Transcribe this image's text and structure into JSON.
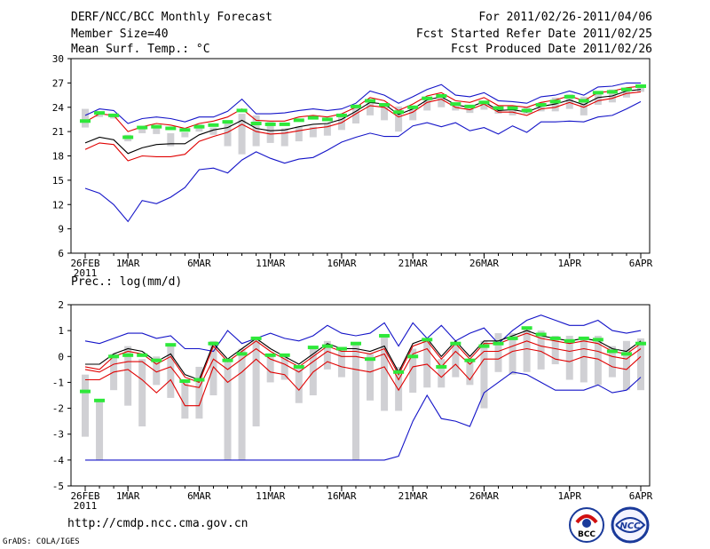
{
  "header": {
    "title": "DERF/NCC/BCC Monthly Forecast",
    "member_size": "Member Size=40",
    "variable1": "Mean Surf. Temp.: °C",
    "period": "For 2011/02/26-2011/04/06",
    "start_date": "Fcst Started Refer Date 2011/02/25",
    "produced": "Fcst Produced Date 2011/02/26"
  },
  "footer": {
    "url": "http://cmdp.ncc.cma.gov.cn",
    "credit": "GrADS: COLA/IGES",
    "logo1_text": "BCC",
    "logo2_text": "NCC"
  },
  "colors": {
    "blue": "#1414c8",
    "red": "#e00000",
    "black": "#000000",
    "green": "#2ee83a",
    "bar": "#d0d0d4"
  },
  "chart_data": [
    {
      "type": "line",
      "title": "Mean Surf. Temp.: °C",
      "ylim": [
        6,
        30
      ],
      "yticks": [
        6,
        9,
        12,
        15,
        18,
        21,
        24,
        27,
        30
      ],
      "xlabels": [
        "26FEB",
        "1MAR",
        "6MAR",
        "11MAR",
        "16MAR",
        "21MAR",
        "26MAR",
        "1APR",
        "6APR"
      ],
      "xlabel_pos": [
        0,
        3,
        8,
        13,
        18,
        23,
        28,
        34,
        39
      ],
      "year_label": "2011",
      "days": 40,
      "series": [
        {
          "name": "max",
          "color": "blue",
          "values": [
            23.0,
            23.8,
            23.6,
            22.0,
            22.6,
            22.8,
            22.6,
            22.2,
            22.8,
            22.8,
            23.5,
            25.0,
            23.2,
            23.2,
            23.3,
            23.6,
            23.8,
            23.6,
            23.8,
            24.5,
            26.0,
            25.5,
            24.5,
            25.3,
            26.2,
            26.8,
            25.5,
            25.3,
            25.8,
            24.8,
            24.7,
            24.5,
            25.3,
            25.5,
            26.0,
            25.5,
            26.5,
            26.6,
            27.0,
            27.0
          ]
        },
        {
          "name": "upper",
          "color": "red",
          "values": [
            22.2,
            23.2,
            23.0,
            21.0,
            21.6,
            22.0,
            21.8,
            21.4,
            22.0,
            22.3,
            22.8,
            23.8,
            22.4,
            22.3,
            22.3,
            22.8,
            23.0,
            22.8,
            23.2,
            24.0,
            25.2,
            24.8,
            23.6,
            24.4,
            25.4,
            25.8,
            24.8,
            24.6,
            25.2,
            24.2,
            24.2,
            24.0,
            24.6,
            24.9,
            25.4,
            24.8,
            25.8,
            26.0,
            26.4,
            26.6
          ]
        },
        {
          "name": "mean",
          "color": "black",
          "values": [
            19.6,
            20.3,
            20.0,
            18.3,
            19.0,
            19.4,
            19.5,
            19.5,
            20.6,
            21.2,
            21.5,
            22.4,
            21.4,
            21.1,
            21.2,
            21.6,
            21.9,
            22.0,
            22.5,
            23.5,
            24.6,
            24.4,
            23.1,
            23.8,
            24.9,
            25.3,
            24.3,
            24.0,
            24.7,
            23.6,
            23.7,
            23.4,
            24.1,
            24.4,
            24.9,
            24.3,
            25.2,
            25.4,
            26.0,
            26.2
          ]
        },
        {
          "name": "lower",
          "color": "red",
          "values": [
            18.8,
            19.6,
            19.4,
            17.4,
            18.0,
            17.9,
            17.9,
            18.2,
            19.8,
            20.4,
            20.9,
            21.9,
            21.0,
            20.7,
            20.8,
            21.1,
            21.4,
            21.6,
            22.1,
            23.2,
            24.2,
            24.0,
            22.8,
            23.4,
            24.6,
            25.0,
            24.0,
            23.7,
            24.4,
            23.4,
            23.4,
            23.0,
            23.8,
            24.0,
            24.6,
            24.0,
            24.8,
            25.1,
            25.7,
            25.9
          ]
        },
        {
          "name": "min",
          "color": "blue",
          "values": [
            14.0,
            13.4,
            12.0,
            9.9,
            12.5,
            12.1,
            12.9,
            14.1,
            16.3,
            16.5,
            15.9,
            17.5,
            18.5,
            17.7,
            17.1,
            17.6,
            17.8,
            18.7,
            19.7,
            20.3,
            20.8,
            20.4,
            20.4,
            21.7,
            22.1,
            21.6,
            22.1,
            21.1,
            21.5,
            20.7,
            21.7,
            20.9,
            22.2,
            22.2,
            22.3,
            22.2,
            22.8,
            23.0,
            23.8,
            24.7
          ]
        }
      ],
      "observed": [
        22.3,
        23.3,
        23.0,
        20.3,
        21.5,
        21.6,
        21.4,
        21.2,
        21.6,
        21.8,
        22.2,
        23.6,
        22.0,
        21.9,
        21.9,
        22.4,
        22.7,
        22.5,
        23.0,
        24.1,
        24.8,
        24.3,
        23.4,
        24.0,
        25.1,
        25.4,
        24.4,
        24.1,
        24.6,
        23.9,
        23.9,
        23.6,
        24.3,
        24.7,
        25.3,
        24.8,
        25.8,
        25.9,
        26.2,
        26.6
      ],
      "bars": [
        [
          21.5,
          23.8
        ],
        [
          22.8,
          23.3
        ],
        [
          22.6,
          23.2
        ],
        [
          19.8,
          20.6
        ],
        [
          20.8,
          21.5
        ],
        [
          20.7,
          21.6
        ],
        [
          19.2,
          20.8
        ],
        [
          20.3,
          20.9
        ],
        [
          21.0,
          21.9
        ],
        [
          20.6,
          21.5
        ],
        [
          19.2,
          22.3
        ],
        [
          18.2,
          23.2
        ],
        [
          19.2,
          23.0
        ],
        [
          19.6,
          22.2
        ],
        [
          19.2,
          21.4
        ],
        [
          19.8,
          21.6
        ],
        [
          20.3,
          21.6
        ],
        [
          20.5,
          22.0
        ],
        [
          21.2,
          23.1
        ],
        [
          22.0,
          24.3
        ],
        [
          23.0,
          24.8
        ],
        [
          22.4,
          24.1
        ],
        [
          21.0,
          24.1
        ],
        [
          22.4,
          24.1
        ],
        [
          23.6,
          25.2
        ],
        [
          24.0,
          25.5
        ],
        [
          23.6,
          24.6
        ],
        [
          23.3,
          24.3
        ],
        [
          23.7,
          24.8
        ],
        [
          23.2,
          24.2
        ],
        [
          23.0,
          24.2
        ],
        [
          23.2,
          24.0
        ],
        [
          23.5,
          24.6
        ],
        [
          23.5,
          25.2
        ],
        [
          23.8,
          25.6
        ],
        [
          23.0,
          25.3
        ],
        [
          24.3,
          26.0
        ],
        [
          24.6,
          26.2
        ],
        [
          25.2,
          26.4
        ],
        [
          25.9,
          26.6
        ]
      ]
    },
    {
      "type": "line",
      "title": "Prec.: log(mm/d)",
      "ylim": [
        -5,
        2
      ],
      "yticks": [
        -5,
        -4,
        -3,
        -2,
        -1,
        0,
        1,
        2
      ],
      "xlabels": [
        "26FEB",
        "1MAR",
        "6MAR",
        "11MAR",
        "16MAR",
        "21MAR",
        "26MAR",
        "1APR",
        "6APR"
      ],
      "xlabel_pos": [
        0,
        3,
        8,
        13,
        18,
        23,
        28,
        34,
        39
      ],
      "year_label": "2011",
      "days": 40,
      "series": [
        {
          "name": "max",
          "color": "blue",
          "values": [
            0.6,
            0.5,
            0.7,
            0.9,
            0.9,
            0.7,
            0.8,
            0.3,
            0.3,
            0.2,
            1.0,
            0.5,
            0.7,
            0.9,
            0.7,
            0.6,
            0.8,
            1.2,
            0.9,
            0.8,
            0.9,
            1.3,
            0.4,
            1.3,
            0.7,
            1.2,
            0.6,
            0.9,
            1.1,
            0.5,
            1.0,
            1.4,
            1.6,
            1.4,
            1.2,
            1.2,
            1.4,
            1.0,
            0.9,
            1.0
          ]
        },
        {
          "name": "upper",
          "color": "black",
          "values": [
            -0.3,
            -0.3,
            0.1,
            0.3,
            0.2,
            -0.2,
            0.1,
            -0.7,
            -0.9,
            0.5,
            -0.1,
            0.3,
            0.7,
            0.3,
            0.0,
            -0.3,
            0.1,
            0.5,
            0.3,
            0.3,
            0.2,
            0.4,
            -0.6,
            0.5,
            0.7,
            0.0,
            0.6,
            0.0,
            0.6,
            0.6,
            0.8,
            1.0,
            0.8,
            0.7,
            0.6,
            0.7,
            0.6,
            0.3,
            0.2,
            0.6
          ]
        },
        {
          "name": "mean",
          "color": "red",
          "values": [
            -0.4,
            -0.5,
            0.0,
            0.2,
            0.1,
            -0.3,
            0.0,
            -0.8,
            -1.0,
            0.4,
            -0.2,
            0.2,
            0.6,
            0.2,
            -0.1,
            -0.4,
            0.0,
            0.4,
            0.2,
            0.2,
            0.1,
            0.3,
            -0.7,
            0.4,
            0.6,
            -0.1,
            0.5,
            -0.1,
            0.5,
            0.5,
            0.7,
            0.9,
            0.7,
            0.6,
            0.5,
            0.6,
            0.5,
            0.2,
            0.1,
            0.5
          ]
        },
        {
          "name": "lower",
          "color": "red",
          "values": [
            -0.9,
            -0.9,
            -0.6,
            -0.5,
            -0.9,
            -1.4,
            -0.9,
            -1.9,
            -1.9,
            -0.4,
            -1.0,
            -0.6,
            -0.1,
            -0.6,
            -0.7,
            -1.3,
            -0.6,
            -0.2,
            -0.4,
            -0.5,
            -0.6,
            -0.4,
            -1.3,
            -0.4,
            -0.3,
            -0.8,
            -0.3,
            -0.9,
            -0.1,
            -0.1,
            0.2,
            0.3,
            0.2,
            -0.1,
            -0.2,
            0.0,
            -0.1,
            -0.4,
            -0.5,
            0.0
          ]
        },
        {
          "name": "min",
          "color": "blue",
          "values": [
            -4.0,
            -4.0,
            -4.0,
            -4.0,
            -4.0,
            -4.0,
            -4.0,
            -4.0,
            -4.0,
            -4.0,
            -4.0,
            -4.0,
            -4.0,
            -4.0,
            -4.0,
            -4.0,
            -4.0,
            -4.0,
            -4.0,
            -4.0,
            -4.0,
            -4.0,
            -3.85,
            -2.5,
            -1.5,
            -2.4,
            -2.5,
            -2.7,
            -1.4,
            -1.0,
            -0.6,
            -0.7,
            -1.0,
            -1.3,
            -1.3,
            -1.3,
            -1.1,
            -1.4,
            -1.3,
            -0.8
          ]
        },
        {
          "name": "upper2",
          "color": "red",
          "values": [
            -0.5,
            -0.6,
            -0.3,
            -0.2,
            -0.2,
            -0.6,
            -0.4,
            -1.1,
            -1.2,
            -0.1,
            -0.5,
            -0.1,
            0.3,
            -0.1,
            -0.3,
            -0.6,
            -0.2,
            0.2,
            0.0,
            0.0,
            -0.1,
            0.1,
            -0.9,
            0.1,
            0.3,
            -0.4,
            0.2,
            -0.3,
            0.2,
            0.2,
            0.4,
            0.6,
            0.4,
            0.3,
            0.2,
            0.3,
            0.2,
            0.0,
            -0.1,
            0.3
          ]
        }
      ],
      "observed": [
        -1.35,
        -1.7,
        0.0,
        0.05,
        0.05,
        -0.15,
        0.45,
        -0.95,
        -0.9,
        0.5,
        -0.15,
        0.1,
        0.7,
        0.05,
        0.05,
        -0.4,
        0.35,
        0.4,
        0.3,
        0.5,
        -0.1,
        0.8,
        -0.6,
        0.0,
        0.65,
        -0.4,
        0.5,
        -0.15,
        0.4,
        0.5,
        0.7,
        1.1,
        0.85,
        0.7,
        0.6,
        0.7,
        0.65,
        0.2,
        0.1,
        0.5
      ],
      "bars": [
        [
          -3.1,
          -0.7
        ],
        [
          -4.0,
          -1.7
        ],
        [
          -1.3,
          0.1
        ],
        [
          -1.9,
          0.4
        ],
        [
          -2.7,
          -0.1
        ],
        [
          -1.1,
          0.0
        ],
        [
          -1.6,
          0.5
        ],
        [
          -2.4,
          -0.9
        ],
        [
          -2.4,
          -0.4
        ],
        [
          -1.5,
          0.6
        ],
        [
          -4.0,
          -0.1
        ],
        [
          -4.0,
          0.3
        ],
        [
          -2.7,
          0.7
        ],
        [
          -1.0,
          0.1
        ],
        [
          -0.9,
          0.0
        ],
        [
          -1.8,
          -0.4
        ],
        [
          -1.5,
          0.3
        ],
        [
          -0.5,
          0.6
        ],
        [
          -0.8,
          0.3
        ],
        [
          -4.0,
          0.5
        ],
        [
          -1.7,
          0.1
        ],
        [
          -2.1,
          0.8
        ],
        [
          -2.1,
          -0.4
        ],
        [
          -1.4,
          0.3
        ],
        [
          -1.2,
          0.7
        ],
        [
          -1.2,
          -0.1
        ],
        [
          -0.8,
          0.5
        ],
        [
          -1.1,
          -0.2
        ],
        [
          -2.0,
          0.6
        ],
        [
          -0.6,
          0.9
        ],
        [
          -0.7,
          0.9
        ],
        [
          -0.6,
          1.1
        ],
        [
          -0.5,
          1.0
        ],
        [
          -0.3,
          0.8
        ],
        [
          -0.9,
          0.8
        ],
        [
          -1.0,
          0.7
        ],
        [
          -1.1,
          0.8
        ],
        [
          -0.8,
          0.4
        ],
        [
          -1.3,
          0.6
        ],
        [
          -1.3,
          0.7
        ]
      ]
    }
  ]
}
